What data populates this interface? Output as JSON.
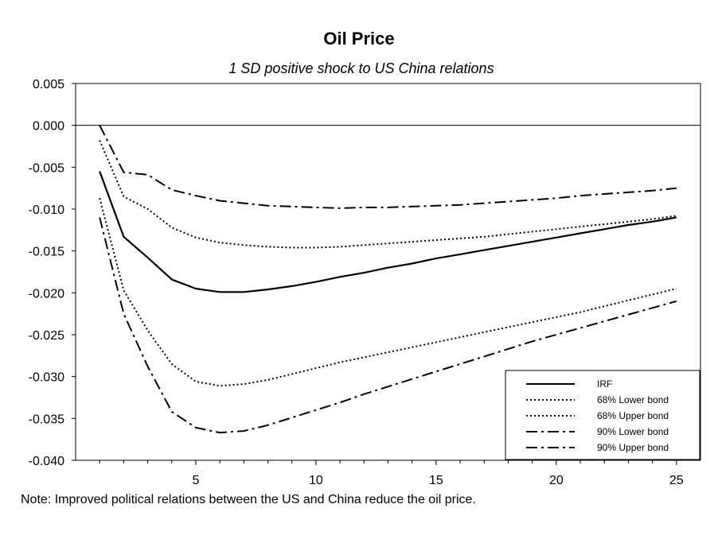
{
  "chart_data": {
    "type": "line",
    "title": "Oil Price",
    "subtitle": "1 SD positive shock to US China relations",
    "xlabel": "",
    "ylabel": "",
    "xlim": [
      0,
      26
    ],
    "ylim": [
      -0.04,
      0.005
    ],
    "xticks": [
      5,
      10,
      15,
      20,
      25
    ],
    "yticks": [
      0.005,
      0.0,
      -0.005,
      -0.01,
      -0.015,
      -0.02,
      -0.025,
      -0.03,
      -0.035,
      -0.04
    ],
    "ytick_labels": [
      "0.005",
      "0.000",
      "-0.005",
      "-0.010",
      "-0.015",
      "-0.020",
      "-0.025",
      "-0.030",
      "-0.035",
      "-0.040"
    ],
    "zero_line": true,
    "grid": false,
    "legend_position": "bottom-right",
    "x": [
      1,
      2,
      3,
      4,
      5,
      6,
      7,
      8,
      9,
      10,
      11,
      12,
      13,
      14,
      15,
      16,
      17,
      18,
      19,
      20,
      21,
      22,
      23,
      24,
      25
    ],
    "series": [
      {
        "name": "IRF",
        "style": "solid",
        "values": [
          -0.0055,
          -0.0133,
          -0.0158,
          -0.0184,
          -0.0195,
          -0.0199,
          -0.0199,
          -0.0196,
          -0.0192,
          -0.0187,
          -0.0181,
          -0.0176,
          -0.017,
          -0.0165,
          -0.0159,
          -0.0154,
          -0.0149,
          -0.0144,
          -0.0139,
          -0.0134,
          -0.0129,
          -0.0124,
          -0.0119,
          -0.0115,
          -0.011
        ]
      },
      {
        "name": "68% Lower bond",
        "style": "dotted",
        "values": [
          -0.0087,
          -0.0197,
          -0.0245,
          -0.0285,
          -0.0306,
          -0.0311,
          -0.0309,
          -0.0304,
          -0.0297,
          -0.029,
          -0.0283,
          -0.0277,
          -0.0271,
          -0.0265,
          -0.0259,
          -0.0253,
          -0.0247,
          -0.0241,
          -0.0235,
          -0.0229,
          -0.0223,
          -0.0216,
          -0.0209,
          -0.0202,
          -0.0195
        ]
      },
      {
        "name": "68% Upper bond",
        "style": "dotted",
        "values": [
          -0.0018,
          -0.0085,
          -0.01,
          -0.0122,
          -0.0134,
          -0.014,
          -0.0143,
          -0.0145,
          -0.0146,
          -0.0146,
          -0.0145,
          -0.0143,
          -0.0141,
          -0.0139,
          -0.0137,
          -0.0135,
          -0.0133,
          -0.013,
          -0.0127,
          -0.0124,
          -0.0121,
          -0.0118,
          -0.0115,
          -0.0112,
          -0.0108
        ]
      },
      {
        "name": "90% Lower bond",
        "style": "dashdot",
        "values": [
          -0.011,
          -0.0225,
          -0.0288,
          -0.0342,
          -0.0361,
          -0.0367,
          -0.0365,
          -0.0358,
          -0.0349,
          -0.034,
          -0.0331,
          -0.0321,
          -0.0312,
          -0.0303,
          -0.0294,
          -0.0285,
          -0.0276,
          -0.0267,
          -0.0258,
          -0.025,
          -0.0242,
          -0.0234,
          -0.0226,
          -0.0218,
          -0.021
        ]
      },
      {
        "name": "90% Upper bond",
        "style": "dashdot",
        "values": [
          0.0,
          -0.0056,
          -0.0059,
          -0.0077,
          -0.0084,
          -0.009,
          -0.0093,
          -0.0096,
          -0.0097,
          -0.0098,
          -0.0099,
          -0.0098,
          -0.0098,
          -0.0097,
          -0.0096,
          -0.0095,
          -0.0093,
          -0.0091,
          -0.0089,
          -0.0087,
          -0.0084,
          -0.0082,
          -0.008,
          -0.0078,
          -0.0075
        ]
      }
    ]
  },
  "note": "Note: Improved political relations between the US and China reduce the oil price."
}
